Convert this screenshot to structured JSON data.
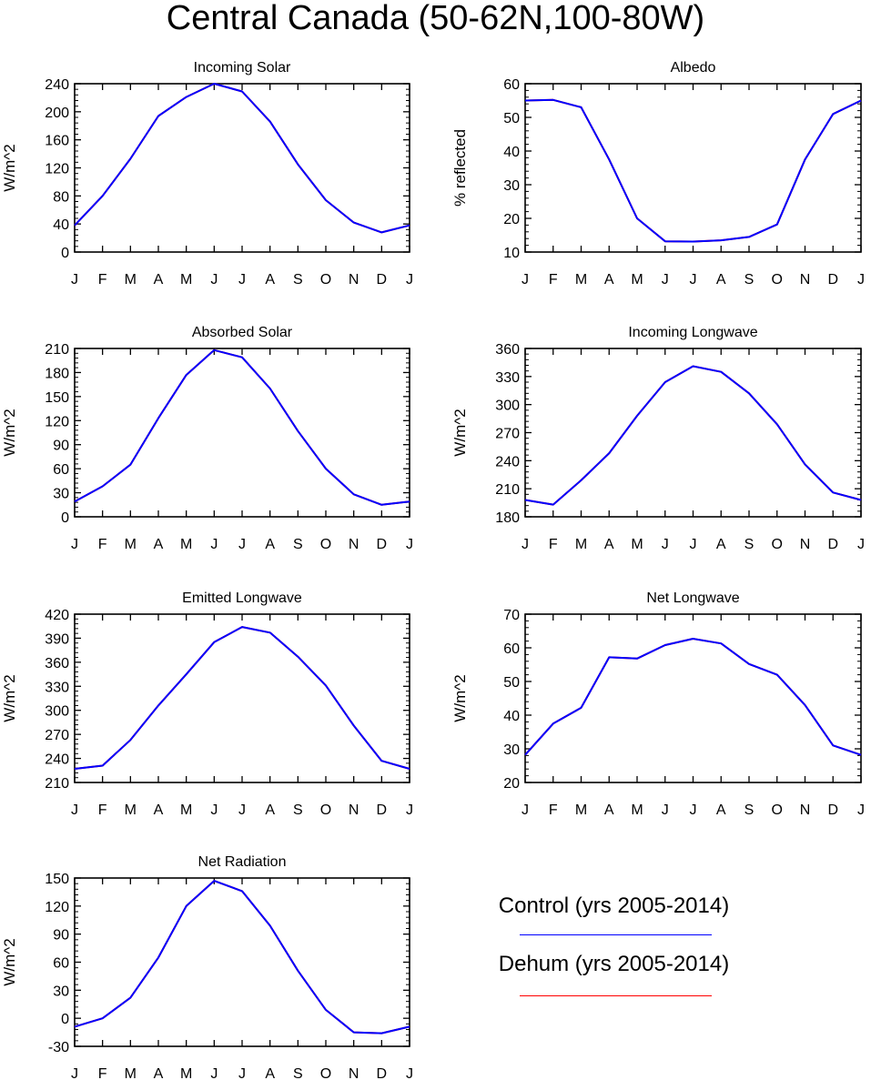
{
  "figure": {
    "title": "Central Canada (50-62N,100-80W)",
    "legend": [
      {
        "label": "Control (yrs 2005-2014)",
        "color": "#0000ff"
      },
      {
        "label": "Dehum (yrs 2005-2014)",
        "color": "#ff0000"
      }
    ]
  },
  "chart_data": [
    {
      "type": "line",
      "title": "Incoming Solar",
      "ylabel": "W/m^2",
      "xlabel": "",
      "categories": [
        "J",
        "F",
        "M",
        "A",
        "M",
        "J",
        "J",
        "A",
        "S",
        "O",
        "N",
        "D",
        "J"
      ],
      "ylim": [
        0,
        240
      ],
      "yticks": [
        0,
        40,
        80,
        120,
        160,
        200,
        240
      ],
      "series": [
        {
          "color": "#0000ff",
          "values": [
            38,
            80,
            133,
            194,
            221,
            240,
            229,
            186,
            125,
            74,
            42,
            28,
            38
          ]
        },
        {
          "color": "#ff0000",
          "values": [
            38,
            80,
            133,
            194,
            221,
            240,
            229,
            186,
            125,
            74,
            42,
            28,
            38
          ]
        }
      ]
    },
    {
      "type": "line",
      "title": "Albedo",
      "ylabel": "% reflected",
      "xlabel": "",
      "categories": [
        "J",
        "F",
        "M",
        "A",
        "M",
        "J",
        "J",
        "A",
        "S",
        "O",
        "N",
        "D",
        "J"
      ],
      "ylim": [
        10,
        60
      ],
      "yticks": [
        10,
        20,
        30,
        40,
        50,
        60
      ],
      "series": [
        {
          "color": "#0000ff",
          "values": [
            55,
            55.2,
            53,
            37.5,
            20,
            13.2,
            13.1,
            13.5,
            14.5,
            18.2,
            37.5,
            51,
            55
          ]
        },
        {
          "color": "#ff0000",
          "values": [
            55,
            55.2,
            53,
            37.5,
            20,
            13.2,
            13.1,
            13.5,
            14.5,
            18.2,
            37.5,
            51,
            55
          ]
        }
      ]
    },
    {
      "type": "line",
      "title": "Absorbed Solar",
      "ylabel": "W/m^2",
      "xlabel": "",
      "categories": [
        "J",
        "F",
        "M",
        "A",
        "M",
        "J",
        "J",
        "A",
        "S",
        "O",
        "N",
        "D",
        "J"
      ],
      "ylim": [
        0,
        210
      ],
      "yticks": [
        0,
        30,
        60,
        90,
        120,
        150,
        180,
        210
      ],
      "series": [
        {
          "color": "#0000ff",
          "values": [
            19,
            38,
            65,
            123,
            177,
            208,
            199,
            160,
            107,
            60,
            28,
            15,
            19
          ]
        },
        {
          "color": "#ff0000",
          "values": [
            19,
            38,
            65,
            123,
            177,
            208,
            199,
            160,
            107,
            60,
            28,
            15,
            19
          ]
        }
      ]
    },
    {
      "type": "line",
      "title": "Incoming Longwave",
      "ylabel": "W/m^2",
      "xlabel": "",
      "categories": [
        "J",
        "F",
        "M",
        "A",
        "M",
        "J",
        "J",
        "A",
        "S",
        "O",
        "N",
        "D",
        "J"
      ],
      "ylim": [
        180,
        360
      ],
      "yticks": [
        180,
        210,
        240,
        270,
        300,
        330,
        360
      ],
      "series": [
        {
          "color": "#0000ff",
          "values": [
            198,
            193,
            219,
            248,
            288,
            324,
            341,
            335,
            312,
            279,
            236,
            206,
            198
          ]
        },
        {
          "color": "#ff0000",
          "values": [
            198,
            193,
            219,
            248,
            288,
            324,
            341,
            335,
            312,
            279,
            236,
            206,
            198
          ]
        }
      ]
    },
    {
      "type": "line",
      "title": "Emitted Longwave",
      "ylabel": "W/m^2",
      "xlabel": "",
      "categories": [
        "J",
        "F",
        "M",
        "A",
        "M",
        "J",
        "J",
        "A",
        "S",
        "O",
        "N",
        "D",
        "J"
      ],
      "ylim": [
        210,
        420
      ],
      "yticks": [
        210,
        240,
        270,
        300,
        330,
        360,
        390,
        420
      ],
      "series": [
        {
          "color": "#0000ff",
          "values": [
            227,
            231,
            263,
            306,
            345,
            385,
            404,
            397,
            367,
            331,
            281,
            237,
            227
          ]
        },
        {
          "color": "#ff0000",
          "values": [
            227,
            231,
            263,
            306,
            345,
            385,
            404,
            397,
            367,
            331,
            281,
            237,
            227
          ]
        }
      ]
    },
    {
      "type": "line",
      "title": "Net Longwave",
      "ylabel": "W/m^2",
      "xlabel": "",
      "categories": [
        "J",
        "F",
        "M",
        "A",
        "M",
        "J",
        "J",
        "A",
        "S",
        "O",
        "N",
        "D",
        "J"
      ],
      "ylim": [
        20,
        70
      ],
      "yticks": [
        20,
        30,
        40,
        50,
        60,
        70
      ],
      "series": [
        {
          "color": "#0000ff",
          "values": [
            28.2,
            37.5,
            42.2,
            57.2,
            56.8,
            60.8,
            62.7,
            61.3,
            55.2,
            52,
            43,
            31,
            28.2
          ]
        },
        {
          "color": "#ff0000",
          "values": [
            28.2,
            37.5,
            42.2,
            57.2,
            56.8,
            60.8,
            62.7,
            61.3,
            55.2,
            52,
            43,
            31,
            28.2
          ]
        }
      ]
    },
    {
      "type": "line",
      "title": "Net Radiation",
      "ylabel": "W/m^2",
      "xlabel": "",
      "categories": [
        "J",
        "F",
        "M",
        "A",
        "M",
        "J",
        "J",
        "A",
        "S",
        "O",
        "N",
        "D",
        "J"
      ],
      "ylim": [
        -30,
        150
      ],
      "yticks": [
        -30,
        0,
        30,
        60,
        90,
        120,
        150
      ],
      "series": [
        {
          "color": "#0000ff",
          "values": [
            -9,
            0,
            22,
            65,
            120,
            147,
            136,
            99,
            51,
            9,
            -15,
            -16,
            -9
          ]
        },
        {
          "color": "#ff0000",
          "values": [
            -9,
            0,
            22,
            65,
            120,
            147,
            136,
            99,
            51,
            9,
            -15,
            -16,
            -9
          ]
        }
      ]
    }
  ]
}
